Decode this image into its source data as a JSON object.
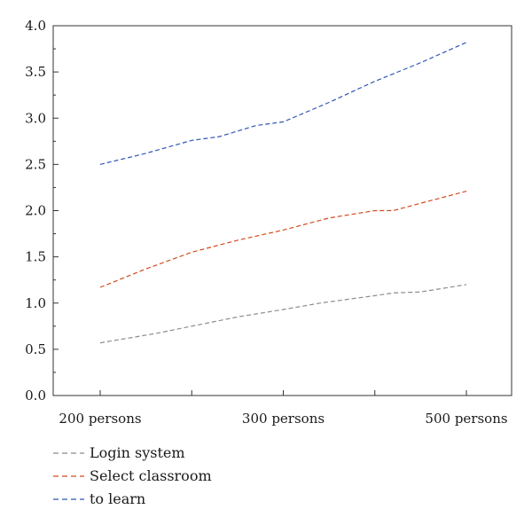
{
  "chart_data": {
    "type": "line",
    "title": "",
    "xlabel": "",
    "ylabel": "",
    "ylim": [
      0,
      4.0
    ],
    "yticks": [
      "0.0",
      "0.5",
      "1.0",
      "1.5",
      "2.0",
      "2.5",
      "3.0",
      "3.5",
      "4.0"
    ],
    "categories": [
      "200 persons",
      "300 persons",
      "500 persons"
    ],
    "grid": false,
    "legend_position": "bottom-left",
    "series": [
      {
        "name": "Login system",
        "color": "#8c8c8c",
        "points": [
          [
            0,
            0.57
          ],
          [
            0.3,
            0.62
          ],
          [
            0.6,
            0.67
          ],
          [
            1.0,
            0.75
          ],
          [
            1.5,
            0.85
          ],
          [
            2.0,
            0.93
          ],
          [
            2.4,
            1.0
          ],
          [
            3.0,
            1.08
          ],
          [
            3.2,
            1.11
          ],
          [
            3.5,
            1.12
          ],
          [
            4.0,
            1.2
          ]
        ]
      },
      {
        "name": "Select classroom",
        "color": "#d24a1e",
        "points": [
          [
            0,
            1.17
          ],
          [
            0.5,
            1.37
          ],
          [
            1.0,
            1.55
          ],
          [
            1.5,
            1.68
          ],
          [
            2.0,
            1.79
          ],
          [
            2.5,
            1.92
          ],
          [
            3.0,
            2.0
          ],
          [
            3.2,
            2.0
          ],
          [
            3.5,
            2.08
          ],
          [
            4.0,
            2.21
          ]
        ]
      },
      {
        "name": "to learn",
        "color": "#2e56b4",
        "points": [
          [
            0,
            2.5
          ],
          [
            0.5,
            2.62
          ],
          [
            1.0,
            2.76
          ],
          [
            1.3,
            2.8
          ],
          [
            1.7,
            2.92
          ],
          [
            2.0,
            2.96
          ],
          [
            2.5,
            3.17
          ],
          [
            3.0,
            3.4
          ],
          [
            3.5,
            3.6
          ],
          [
            4.0,
            3.82
          ]
        ]
      }
    ]
  }
}
